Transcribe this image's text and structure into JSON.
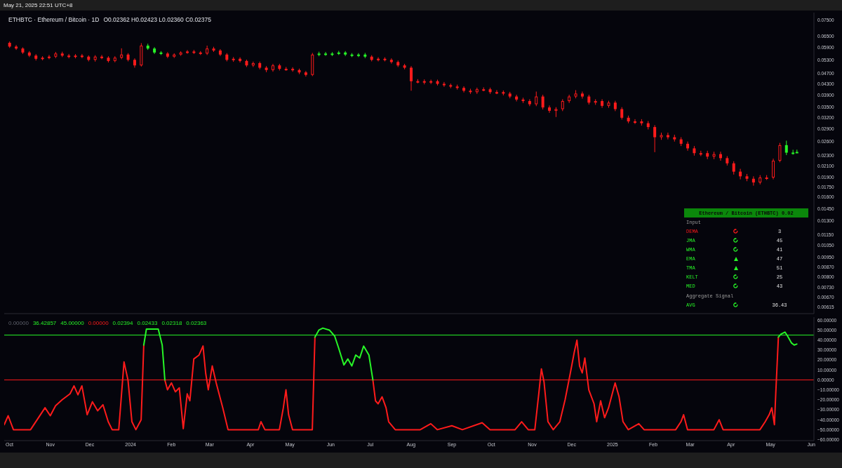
{
  "chart_data": [
    {
      "type": "candlestick",
      "title": "ETHBTC · Ethereum / Bitcoin · 1D",
      "subtitle": "O0.02362 H0.02423 L0.02360 C0.02375",
      "annotations": [
        "May 21, 2025 22:51 UTC+8"
      ],
      "x": [
        "2023-10-01",
        "2023-10-06",
        "2023-10-11",
        "2023-10-16",
        "2023-10-21",
        "2023-10-26",
        "2023-10-31",
        "2023-11-05",
        "2023-11-10",
        "2023-11-15",
        "2023-11-20",
        "2023-11-25",
        "2023-11-30",
        "2023-12-05",
        "2023-12-10",
        "2023-12-15",
        "2023-12-20",
        "2023-12-25",
        "2023-12-30",
        "2024-01-04",
        "2024-01-09",
        "2024-01-14",
        "2024-01-19",
        "2024-01-24",
        "2024-01-29",
        "2024-02-03",
        "2024-02-08",
        "2024-02-13",
        "2024-02-18",
        "2024-02-23",
        "2024-02-28",
        "2024-03-04",
        "2024-03-09",
        "2024-03-14",
        "2024-03-19",
        "2024-03-24",
        "2024-03-29",
        "2024-04-03",
        "2024-04-08",
        "2024-04-13",
        "2024-04-18",
        "2024-04-23",
        "2024-04-28",
        "2024-05-03",
        "2024-05-08",
        "2024-05-13",
        "2024-05-18",
        "2024-05-23",
        "2024-05-28",
        "2024-06-02",
        "2024-06-07",
        "2024-06-12",
        "2024-06-17",
        "2024-06-22",
        "2024-06-27",
        "2024-07-02",
        "2024-07-07",
        "2024-07-12",
        "2024-07-17",
        "2024-07-22",
        "2024-07-27",
        "2024-08-01",
        "2024-08-06",
        "2024-08-11",
        "2024-08-16",
        "2024-08-21",
        "2024-08-26",
        "2024-08-31",
        "2024-09-05",
        "2024-09-10",
        "2024-09-15",
        "2024-09-20",
        "2024-09-25",
        "2024-09-30",
        "2024-10-05",
        "2024-10-10",
        "2024-10-15",
        "2024-10-20",
        "2024-10-25",
        "2024-10-30",
        "2024-11-04",
        "2024-11-09",
        "2024-11-14",
        "2024-11-19",
        "2024-11-24",
        "2024-11-29",
        "2024-12-04",
        "2024-12-09",
        "2024-12-14",
        "2024-12-19",
        "2024-12-24",
        "2024-12-29",
        "2025-01-03",
        "2025-01-08",
        "2025-01-13",
        "2025-01-18",
        "2025-01-23",
        "2025-01-28",
        "2025-02-02",
        "2025-02-07",
        "2025-02-12",
        "2025-02-17",
        "2025-02-22",
        "2025-02-27",
        "2025-03-04",
        "2025-03-09",
        "2025-03-14",
        "2025-03-19",
        "2025-03-24",
        "2025-03-29",
        "2025-04-03",
        "2025-04-08",
        "2025-04-13",
        "2025-04-18",
        "2025-04-23",
        "2025-04-28",
        "2025-05-03",
        "2025-05-08",
        "2025-05-13",
        "2025-05-18",
        "2025-05-21"
      ],
      "ohlc": [
        [
          0.0615,
          0.0622,
          0.0588,
          0.0595
        ],
        [
          0.0595,
          0.0603,
          0.0578,
          0.0585
        ],
        [
          0.0585,
          0.0591,
          0.0558,
          0.0565
        ],
        [
          0.0565,
          0.0572,
          0.0543,
          0.055
        ],
        [
          0.055,
          0.0557,
          0.0527,
          0.0535
        ],
        [
          0.0535,
          0.0547,
          0.0528,
          0.054
        ],
        [
          0.054,
          0.0553,
          0.0533,
          0.0545
        ],
        [
          0.0545,
          0.0568,
          0.0538,
          0.056
        ],
        [
          0.056,
          0.0569,
          0.0543,
          0.055
        ],
        [
          0.055,
          0.0558,
          0.0537,
          0.0545
        ],
        [
          0.0545,
          0.0557,
          0.0537,
          0.055
        ],
        [
          0.055,
          0.0558,
          0.0538,
          0.0545
        ],
        [
          0.0545,
          0.0551,
          0.0523,
          0.053
        ],
        [
          0.053,
          0.0552,
          0.0522,
          0.0545
        ],
        [
          0.0545,
          0.0553,
          0.0533,
          0.054
        ],
        [
          0.054,
          0.0547,
          0.0518,
          0.0525
        ],
        [
          0.0525,
          0.0547,
          0.0519,
          0.054
        ],
        [
          0.054,
          0.0586,
          0.0533,
          0.0555
        ],
        [
          0.0555,
          0.0562,
          0.0523,
          0.053
        ],
        [
          0.053,
          0.0537,
          0.0495,
          0.0505
        ],
        [
          0.0505,
          0.0613,
          0.05,
          0.06
        ],
        [
          0.06,
          0.061,
          0.0578,
          0.0585
        ],
        [
          0.0585,
          0.0592,
          0.0558,
          0.0565
        ],
        [
          0.0565,
          0.0572,
          0.0553,
          0.056
        ],
        [
          0.056,
          0.0567,
          0.0538,
          0.0545
        ],
        [
          0.0545,
          0.0561,
          0.0539,
          0.0555
        ],
        [
          0.0555,
          0.0571,
          0.0549,
          0.0565
        ],
        [
          0.0565,
          0.0577,
          0.0559,
          0.057
        ],
        [
          0.057,
          0.0578,
          0.0558,
          0.0565
        ],
        [
          0.0565,
          0.0572,
          0.0553,
          0.056
        ],
        [
          0.056,
          0.06,
          0.0553,
          0.0585
        ],
        [
          0.0585,
          0.0594,
          0.0568,
          0.0575
        ],
        [
          0.0575,
          0.0582,
          0.0548,
          0.0555
        ],
        [
          0.0555,
          0.0562,
          0.0523,
          0.053
        ],
        [
          0.053,
          0.0543,
          0.0521,
          0.0535
        ],
        [
          0.0535,
          0.0542,
          0.0518,
          0.0525
        ],
        [
          0.0525,
          0.0531,
          0.0498,
          0.0505
        ],
        [
          0.0505,
          0.0522,
          0.0498,
          0.0515
        ],
        [
          0.0515,
          0.0522,
          0.0488,
          0.0495
        ],
        [
          0.0495,
          0.0502,
          0.0476,
          0.0485
        ],
        [
          0.0485,
          0.0512,
          0.0478,
          0.0505
        ],
        [
          0.0505,
          0.0512,
          0.0483,
          0.049
        ],
        [
          0.049,
          0.0498,
          0.0482,
          0.049
        ],
        [
          0.049,
          0.0497,
          0.0478,
          0.0485
        ],
        [
          0.0485,
          0.0491,
          0.0468,
          0.0475
        ],
        [
          0.0475,
          0.0481,
          0.0458,
          0.0465
        ],
        [
          0.0465,
          0.0563,
          0.046,
          0.0555
        ],
        [
          0.0555,
          0.0569,
          0.0547,
          0.056
        ],
        [
          0.056,
          0.0568,
          0.0549,
          0.0555
        ],
        [
          0.0555,
          0.0567,
          0.0548,
          0.056
        ],
        [
          0.056,
          0.0573,
          0.0553,
          0.0565
        ],
        [
          0.0565,
          0.0572,
          0.0548,
          0.0555
        ],
        [
          0.0555,
          0.0562,
          0.0543,
          0.055
        ],
        [
          0.055,
          0.0562,
          0.0543,
          0.0555
        ],
        [
          0.0555,
          0.0563,
          0.0538,
          0.0545
        ],
        [
          0.0545,
          0.0552,
          0.0523,
          0.053
        ],
        [
          0.053,
          0.0542,
          0.0523,
          0.0535
        ],
        [
          0.0535,
          0.0542,
          0.0523,
          0.053
        ],
        [
          0.053,
          0.0537,
          0.0513,
          0.052
        ],
        [
          0.052,
          0.0527,
          0.0498,
          0.0505
        ],
        [
          0.0505,
          0.0512,
          0.0488,
          0.0495
        ],
        [
          0.0495,
          0.0502,
          0.0405,
          0.044
        ],
        [
          0.044,
          0.0448,
          0.0432,
          0.044
        ],
        [
          0.044,
          0.0447,
          0.0428,
          0.0435
        ],
        [
          0.0435,
          0.0446,
          0.0429,
          0.044
        ],
        [
          0.044,
          0.0446,
          0.0424,
          0.043
        ],
        [
          0.043,
          0.0437,
          0.0419,
          0.0425
        ],
        [
          0.0425,
          0.0431,
          0.0414,
          0.042
        ],
        [
          0.042,
          0.0427,
          0.0409,
          0.0415
        ],
        [
          0.0415,
          0.0421,
          0.0399,
          0.0405
        ],
        [
          0.0405,
          0.0412,
          0.0394,
          0.04
        ],
        [
          0.04,
          0.0416,
          0.0394,
          0.041
        ],
        [
          0.041,
          0.0417,
          0.0403,
          0.041
        ],
        [
          0.041,
          0.0416,
          0.0394,
          0.04
        ],
        [
          0.04,
          0.0407,
          0.0393,
          0.04
        ],
        [
          0.04,
          0.0406,
          0.0389,
          0.0395
        ],
        [
          0.0395,
          0.0401,
          0.0379,
          0.0385
        ],
        [
          0.0385,
          0.0391,
          0.0369,
          0.0375
        ],
        [
          0.0375,
          0.0381,
          0.0364,
          0.037
        ],
        [
          0.037,
          0.0376,
          0.0354,
          0.036
        ],
        [
          0.036,
          0.0402,
          0.0354,
          0.0385
        ],
        [
          0.0385,
          0.0391,
          0.0344,
          0.035
        ],
        [
          0.035,
          0.0356,
          0.0334,
          0.034
        ],
        [
          0.034,
          0.0351,
          0.0322,
          0.0345
        ],
        [
          0.0345,
          0.0376,
          0.0339,
          0.037
        ],
        [
          0.037,
          0.0391,
          0.0364,
          0.0385
        ],
        [
          0.0385,
          0.0407,
          0.0379,
          0.0395
        ],
        [
          0.0395,
          0.0402,
          0.0378,
          0.0385
        ],
        [
          0.0385,
          0.0391,
          0.0359,
          0.0365
        ],
        [
          0.0365,
          0.0376,
          0.0358,
          0.037
        ],
        [
          0.037,
          0.0376,
          0.0349,
          0.0355
        ],
        [
          0.0355,
          0.0371,
          0.0349,
          0.0365
        ],
        [
          0.0365,
          0.0371,
          0.0339,
          0.0345
        ],
        [
          0.0345,
          0.0351,
          0.0315,
          0.032
        ],
        [
          0.032,
          0.0326,
          0.0305,
          0.031
        ],
        [
          0.031,
          0.0316,
          0.0303,
          0.031
        ],
        [
          0.031,
          0.0316,
          0.0299,
          0.0305
        ],
        [
          0.0305,
          0.0311,
          0.0289,
          0.0295
        ],
        [
          0.0295,
          0.03,
          0.0237,
          0.027
        ],
        [
          0.027,
          0.0281,
          0.0264,
          0.0275
        ],
        [
          0.0275,
          0.0281,
          0.0265,
          0.027
        ],
        [
          0.027,
          0.0276,
          0.026,
          0.0265
        ],
        [
          0.0265,
          0.027,
          0.025,
          0.0255
        ],
        [
          0.0255,
          0.026,
          0.024,
          0.0245
        ],
        [
          0.0245,
          0.025,
          0.023,
          0.0235
        ],
        [
          0.0235,
          0.024,
          0.0229,
          0.0235
        ],
        [
          0.0235,
          0.024,
          0.0223,
          0.0228
        ],
        [
          0.0228,
          0.0238,
          0.0223,
          0.0233
        ],
        [
          0.0233,
          0.0238,
          0.022,
          0.0225
        ],
        [
          0.0225,
          0.0229,
          0.0211,
          0.0215
        ],
        [
          0.0215,
          0.0219,
          0.0195,
          0.02
        ],
        [
          0.02,
          0.0205,
          0.0187,
          0.0192
        ],
        [
          0.0192,
          0.0196,
          0.0184,
          0.0188
        ],
        [
          0.0188,
          0.0192,
          0.0177,
          0.0182
        ],
        [
          0.0182,
          0.0194,
          0.0179,
          0.019
        ],
        [
          0.019,
          0.0194,
          0.0186,
          0.019
        ],
        [
          0.019,
          0.0224,
          0.0187,
          0.022
        ],
        [
          0.022,
          0.0257,
          0.0217,
          0.0252
        ],
        [
          0.0252,
          0.0262,
          0.0231,
          0.0236
        ],
        [
          0.0236,
          0.0242,
          0.0232,
          0.02362
        ],
        [
          0.02362,
          0.02423,
          0.0236,
          0.02375
        ]
      ],
      "colors": [
        "#ff1b1b",
        "#ff1b1b",
        "#ff1b1b",
        "#ff1b1b",
        "#ff1b1b",
        "#ff1b1b",
        "#ff1b1b",
        "#ff1b1b",
        "#ff1b1b",
        "#ff1b1b",
        "#ff1b1b",
        "#ff1b1b",
        "#ff1b1b",
        "#ff1b1b",
        "#ff1b1b",
        "#ff1b1b",
        "#ff1b1b",
        "#ff1b1b",
        "#ff1b1b",
        "#ff1b1b",
        "#ff1b1b",
        "#27f527",
        "#27f527",
        "#27f527",
        "#ff1b1b",
        "#ff1b1b",
        "#ff1b1b",
        "#ff1b1b",
        "#ff1b1b",
        "#ff1b1b",
        "#ff1b1b",
        "#ff1b1b",
        "#ff1b1b",
        "#ff1b1b",
        "#ff1b1b",
        "#ff1b1b",
        "#ff1b1b",
        "#ff1b1b",
        "#ff1b1b",
        "#ff1b1b",
        "#ff1b1b",
        "#ff1b1b",
        "#ff1b1b",
        "#ff1b1b",
        "#ff1b1b",
        "#ff1b1b",
        "#ff1b1b",
        "#27f527",
        "#27f527",
        "#27f527",
        "#27f527",
        "#27f527",
        "#27f527",
        "#27f527",
        "#27f527",
        "#ff1b1b",
        "#ff1b1b",
        "#ff1b1b",
        "#ff1b1b",
        "#ff1b1b",
        "#ff1b1b",
        "#ff1b1b",
        "#ff1b1b",
        "#ff1b1b",
        "#ff1b1b",
        "#ff1b1b",
        "#ff1b1b",
        "#ff1b1b",
        "#ff1b1b",
        "#ff1b1b",
        "#ff1b1b",
        "#ff1b1b",
        "#ff1b1b",
        "#ff1b1b",
        "#ff1b1b",
        "#ff1b1b",
        "#ff1b1b",
        "#ff1b1b",
        "#ff1b1b",
        "#ff1b1b",
        "#ff1b1b",
        "#ff1b1b",
        "#ff1b1b",
        "#ff1b1b",
        "#ff1b1b",
        "#ff1b1b",
        "#ff1b1b",
        "#ff1b1b",
        "#ff1b1b",
        "#ff1b1b",
        "#ff1b1b",
        "#ff1b1b",
        "#ff1b1b",
        "#ff1b1b",
        "#ff1b1b",
        "#ff1b1b",
        "#ff1b1b",
        "#ff1b1b",
        "#ff1b1b",
        "#ff1b1b",
        "#ff1b1b",
        "#ff1b1b",
        "#ff1b1b",
        "#ff1b1b",
        "#ff1b1b",
        "#ff1b1b",
        "#ff1b1b",
        "#ff1b1b",
        "#ff1b1b",
        "#ff1b1b",
        "#ff1b1b",
        "#ff1b1b",
        "#ff1b1b",
        "#ff1b1b",
        "#ff1b1b",
        "#ff1b1b",
        "#ff1b1b",
        "#ff1b1b",
        "#27f527",
        "#27f527",
        "#27f527"
      ],
      "xlim": [
        "2023-09-27",
        "2025-06-03"
      ],
      "ylim": [
        0.0058,
        0.08
      ],
      "log": true,
      "tick_labels": "y",
      "yticks": [
        {
          "value": 0.075,
          "label": "0.07500"
        },
        {
          "value": 0.065,
          "label": "0.06500"
        },
        {
          "value": 0.059,
          "label": "0.05900"
        },
        {
          "value": 0.053,
          "label": "0.05300"
        },
        {
          "value": 0.047,
          "label": "0.04700"
        },
        {
          "value": 0.043,
          "label": "0.04300"
        },
        {
          "value": 0.039,
          "label": "0.03900"
        },
        {
          "value": 0.035,
          "label": "0.03500"
        },
        {
          "value": 0.032,
          "label": "0.03200"
        },
        {
          "value": 0.029,
          "label": "0.02900"
        },
        {
          "value": 0.026,
          "label": "0.02600"
        },
        {
          "value": 0.023,
          "label": "0.02300"
        },
        {
          "value": 0.021,
          "label": "0.02100"
        },
        {
          "value": 0.019,
          "label": "0.01900"
        },
        {
          "value": 0.0175,
          "label": "0.01750"
        },
        {
          "value": 0.016,
          "label": "0.01600"
        },
        {
          "value": 0.0145,
          "label": "0.01450"
        },
        {
          "value": 0.013,
          "label": "0.01300"
        },
        {
          "value": 0.0115,
          "label": "0.01150"
        },
        {
          "value": 0.0105,
          "label": "0.01050"
        },
        {
          "value": 0.0095,
          "label": "0.00950"
        },
        {
          "value": 0.0087,
          "label": "0.00870"
        },
        {
          "value": 0.008,
          "label": "0.00800"
        },
        {
          "value": 0.0073,
          "label": "0.00730"
        },
        {
          "value": 0.0067,
          "label": "0.00670"
        },
        {
          "value": 0.00615,
          "label": "0.00615"
        }
      ]
    },
    {
      "type": "line",
      "annotations": [
        "0.00000",
        "36.42857",
        "45.00000",
        "0.00000",
        "0.02394",
        "0.02433",
        "0.02318",
        "0.02363"
      ],
      "series": [
        {
          "color": "#ff1b1b",
          "x": [
            "2023-09-27",
            "2023-09-30",
            "2023-10-04",
            "2023-10-17",
            "2023-10-23",
            "2023-10-28",
            "2023-11-01",
            "2023-11-05",
            "2023-11-10",
            "2023-11-16",
            "2023-11-19",
            "2023-11-22",
            "2023-11-25",
            "2023-11-29",
            "2023-12-03",
            "2023-12-07",
            "2023-12-11",
            "2023-12-15",
            "2023-12-18",
            "2023-12-23",
            "2023-12-27",
            "2023-12-30",
            "2024-01-02",
            "2024-01-05",
            "2024-01-09",
            "2024-01-11",
            "2024-01-19",
            "2024-01-27",
            "2024-01-29",
            "2024-02-01",
            "2024-02-04",
            "2024-02-07",
            "2024-02-10",
            "2024-02-13",
            "2024-02-15",
            "2024-02-18",
            "2024-02-22",
            "2024-02-25",
            "2024-02-27",
            "2024-02-29",
            "2024-03-03",
            "2024-03-06",
            "2024-03-11",
            "2024-03-15",
            "2024-04-07",
            "2024-04-09",
            "2024-04-12",
            "2024-04-23",
            "2024-04-26",
            "2024-04-28",
            "2024-04-30",
            "2024-05-03",
            "2024-05-18",
            "2024-05-20",
            "2024-06-10",
            "2024-07-03",
            "2024-07-05",
            "2024-07-07",
            "2024-07-10",
            "2024-07-13",
            "2024-07-15",
            "2024-07-20",
            "2024-08-08",
            "2024-08-16",
            "2024-08-21",
            "2024-09-01",
            "2024-09-09",
            "2024-09-24",
            "2024-09-30",
            "2024-10-19",
            "2024-10-24",
            "2024-10-29",
            "2024-11-03",
            "2024-11-06",
            "2024-11-08",
            "2024-11-10",
            "2024-11-13",
            "2024-11-17",
            "2024-11-22",
            "2024-11-26",
            "2024-11-30",
            "2024-12-03",
            "2024-12-05",
            "2024-12-07",
            "2024-12-09",
            "2024-12-11",
            "2024-12-14",
            "2024-12-18",
            "2024-12-20",
            "2024-12-23",
            "2024-12-26",
            "2024-12-29",
            "2025-01-03",
            "2025-01-06",
            "2025-01-09",
            "2025-01-13",
            "2025-01-21",
            "2025-01-25",
            "2025-02-18",
            "2025-02-22",
            "2025-02-24",
            "2025-02-27",
            "2025-03-19",
            "2025-03-23",
            "2025-03-26",
            "2025-04-23",
            "2025-04-27",
            "2025-04-30",
            "2025-05-02",
            "2025-05-04",
            "2025-05-05",
            "2025-05-07"
          ],
          "values": [
            -45,
            -36,
            -50,
            -50,
            -38,
            -28,
            -36,
            -26,
            -20,
            -14,
            -6,
            -15,
            -6,
            -35,
            -22,
            -31,
            -25,
            -42,
            -50,
            -50,
            18,
            0,
            -42,
            -50,
            -40,
            35,
            null,
            0,
            -10,
            -3,
            -12,
            -8,
            -49,
            -14,
            -21,
            21,
            25,
            34,
            7,
            -10,
            14,
            -3,
            -28,
            -50,
            -50,
            -42,
            -50,
            -50,
            -28,
            -10,
            -35,
            -50,
            -50,
            43,
            null,
            0,
            -21,
            -24,
            -17,
            -28,
            -42,
            -50,
            -50,
            -44,
            -50,
            -46,
            -50,
            -43,
            -50,
            -50,
            -42,
            -50,
            -50,
            -14,
            11,
            -2,
            -42,
            -50,
            -42,
            -20,
            7,
            28,
            40,
            14,
            7,
            22,
            -10,
            -24,
            -42,
            -21,
            -38,
            -28,
            -3,
            -17,
            -42,
            -50,
            -44,
            -50,
            -50,
            -42,
            -35,
            -50,
            -50,
            -40,
            -50,
            -50,
            -42,
            -35,
            -28,
            -45,
            -14,
            43
          ]
        },
        {
          "color": "#27f527",
          "x": [
            "2024-01-11",
            "2024-01-13",
            "2024-01-22",
            "2024-01-25",
            "2024-01-27",
            "2024-03-15",
            "2024-05-20",
            "2024-05-23",
            "2024-05-26",
            "2024-05-31",
            "2024-06-04",
            "2024-06-07",
            "2024-06-11",
            "2024-06-14",
            "2024-06-17",
            "2024-06-20",
            "2024-06-23",
            "2024-06-26",
            "2024-06-30",
            "2024-07-03",
            "2024-12-01",
            "2025-05-07",
            "2025-05-09",
            "2025-05-12",
            "2025-05-14",
            "2025-05-17",
            "2025-05-19",
            "2025-05-21"
          ],
          "values": [
            35,
            51,
            51,
            35,
            0,
            null,
            43,
            50,
            52,
            50,
            44,
            32,
            15,
            21,
            14,
            25,
            22,
            34,
            25,
            0,
            null,
            43,
            46,
            48,
            44,
            37,
            35,
            36
          ]
        }
      ],
      "ref_lines": [
        {
          "axis": "y",
          "value": 45,
          "color": "#27f527"
        },
        {
          "axis": "y",
          "value": 0,
          "color": "#ff1b1b"
        }
      ],
      "xlim": [
        "2023-09-27",
        "2025-06-03"
      ],
      "xticks": [
        {
          "value": "2023-10-01",
          "label": "Oct"
        },
        {
          "value": "2023-11-01",
          "label": "Nov"
        },
        {
          "value": "2023-12-01",
          "label": "Dec"
        },
        {
          "value": "2024-01-01",
          "label": "2024"
        },
        {
          "value": "2024-02-01",
          "label": "Feb"
        },
        {
          "value": "2024-03-01",
          "label": "Mar"
        },
        {
          "value": "2024-04-01",
          "label": "Apr"
        },
        {
          "value": "2024-05-01",
          "label": "May"
        },
        {
          "value": "2024-06-01",
          "label": "Jun"
        },
        {
          "value": "2024-07-01",
          "label": "Jul"
        },
        {
          "value": "2024-08-01",
          "label": "Aug"
        },
        {
          "value": "2024-09-01",
          "label": "Sep"
        },
        {
          "value": "2024-10-01",
          "label": "Oct"
        },
        {
          "value": "2024-11-01",
          "label": "Nov"
        },
        {
          "value": "2024-12-01",
          "label": "Dec"
        },
        {
          "value": "2025-01-01",
          "label": "2025"
        },
        {
          "value": "2025-02-01",
          "label": "Feb"
        },
        {
          "value": "2025-03-01",
          "label": "Mar"
        },
        {
          "value": "2025-04-01",
          "label": "Apr"
        },
        {
          "value": "2025-05-01",
          "label": "May"
        },
        {
          "value": "2025-06-01",
          "label": "Jun"
        }
      ],
      "ylim": [
        -61,
        63
      ],
      "yticks": [
        {
          "value": 60,
          "label": "60.00000"
        },
        {
          "value": 50,
          "label": "50.00000"
        },
        {
          "value": 40,
          "label": "40.00000"
        },
        {
          "value": 30,
          "label": "30.00000"
        },
        {
          "value": 20,
          "label": "20.00000"
        },
        {
          "value": 10,
          "label": "10.00000"
        },
        {
          "value": 0,
          "label": "0.00000"
        },
        {
          "value": -10,
          "label": "−10.00000"
        },
        {
          "value": -20,
          "label": "−20.00000"
        },
        {
          "value": -30,
          "label": "−30.00000"
        },
        {
          "value": -40,
          "label": "−40.00000"
        },
        {
          "value": -50,
          "label": "−50.00000"
        },
        {
          "value": -60,
          "label": "−60.00000"
        }
      ]
    },
    {
      "type": "other",
      "title": "Ethereum / Bitcoin (ETHBTC) 0.02"
    },
    {
      "type": "other",
      "title": "Input",
      "categories": [
        "DEMA",
        "JMA",
        "WMA",
        "EMA",
        "TMA",
        "KELT",
        "MED"
      ],
      "values": [
        3,
        45,
        41,
        47,
        51,
        25,
        43
      ],
      "colors": [
        "#ff1b1b",
        "#27f527",
        "#27f527",
        "#27f527",
        "#27f527",
        "#27f527",
        "#27f527"
      ],
      "data_labels": true
    },
    {
      "type": "other",
      "title": "Aggregate Signal",
      "categories": [
        "AVG"
      ],
      "values": [
        36.43
      ],
      "colors": [
        "#27f527"
      ],
      "data_labels": true
    }
  ]
}
